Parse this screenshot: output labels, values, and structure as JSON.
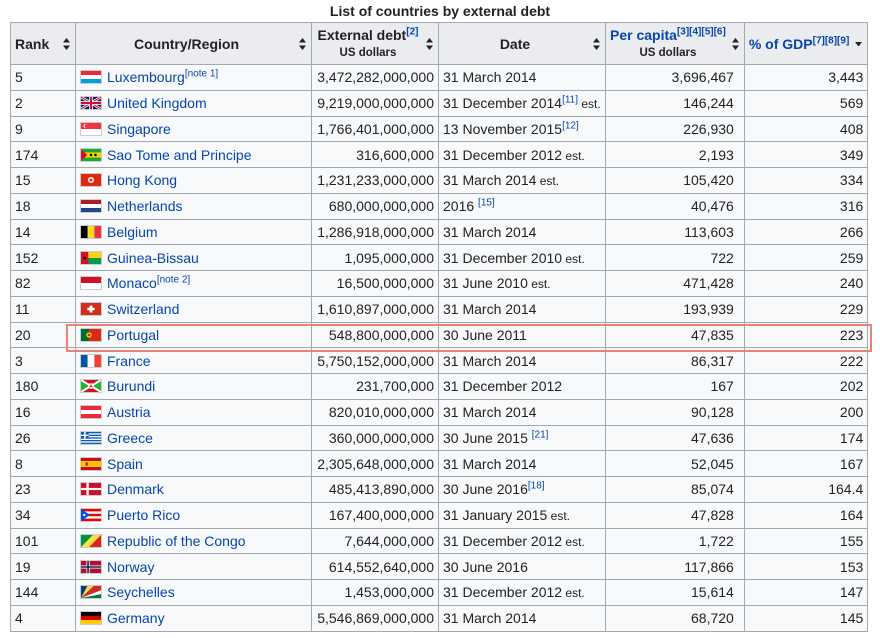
{
  "caption": "List of countries by external debt",
  "headers": {
    "rank": "Rank",
    "country": "Country/Region",
    "debt": "External debt",
    "debt_refs": "[2]",
    "debt_unit": "US dollars",
    "date": "Date",
    "per_capita": "Per capita",
    "per_capita_refs": "[3][4][5][6]",
    "per_capita_unit": "US dollars",
    "gdp": "% of GDP",
    "gdp_refs": "[7][8][9]"
  },
  "rows": [
    {
      "rank": "5",
      "country": "Luxembourg",
      "note": "[note 1]",
      "flag": "lu",
      "debt": "3,472,282,000,000",
      "date": "31 March 2014",
      "date_ref": "",
      "est": "",
      "per_capita": "3,696,467",
      "gdp": "3,443"
    },
    {
      "rank": "2",
      "country": "United Kingdom",
      "note": "",
      "flag": "gb",
      "debt": "9,219,000,000,000",
      "date": "31 December 2014",
      "date_ref": "[11]",
      "est": " est.",
      "per_capita": "146,244",
      "gdp": "569"
    },
    {
      "rank": "9",
      "country": "Singapore",
      "note": "",
      "flag": "sg",
      "debt": "1,766,401,000,000",
      "date": "13 November 2015",
      "date_ref": "[12]",
      "est": "",
      "per_capita": "226,930",
      "gdp": "408"
    },
    {
      "rank": "174",
      "country": "Sao Tome and Principe",
      "note": "",
      "flag": "st",
      "debt": "316,600,000",
      "date": "31 December 2012",
      "date_ref": "",
      "est": " est.",
      "per_capita": "2,193",
      "gdp": "349"
    },
    {
      "rank": "15",
      "country": "Hong Kong",
      "note": "",
      "flag": "hk",
      "debt": "1,231,233,000,000",
      "date": "31 March 2014",
      "date_ref": "",
      "est": " est.",
      "per_capita": "105,420",
      "gdp": "334"
    },
    {
      "rank": "18",
      "country": "Netherlands",
      "note": "",
      "flag": "nl",
      "debt": "680,000,000,000",
      "date": "2016 ",
      "date_ref": "[15]",
      "est": "",
      "per_capita": "40,476",
      "gdp": "316"
    },
    {
      "rank": "14",
      "country": "Belgium",
      "note": "",
      "flag": "be",
      "debt": "1,286,918,000,000",
      "date": "31 March 2014",
      "date_ref": "",
      "est": "",
      "per_capita": "113,603",
      "gdp": "266"
    },
    {
      "rank": "152",
      "country": "Guinea-Bissau",
      "note": "",
      "flag": "gw",
      "debt": "1,095,000,000",
      "date": "31 December 2010",
      "date_ref": "",
      "est": " est.",
      "per_capita": "722",
      "gdp": "259"
    },
    {
      "rank": "82",
      "country": "Monaco",
      "note": "[note 2]",
      "flag": "mc",
      "debt": "16,500,000,000",
      "date": "31 June 2010",
      "date_ref": "",
      "est": " est.",
      "per_capita": "471,428",
      "gdp": "240"
    },
    {
      "rank": "11",
      "country": "Switzerland",
      "note": "",
      "flag": "ch",
      "debt": "1,610,897,000,000",
      "date": "31 March 2014",
      "date_ref": "",
      "est": "",
      "per_capita": "193,939",
      "gdp": "229"
    },
    {
      "rank": "20",
      "country": "Portugal",
      "note": "",
      "flag": "pt",
      "debt": "548,800,000,000",
      "date": "30 June 2011",
      "date_ref": "",
      "est": "",
      "per_capita": "47,835",
      "gdp": "223"
    },
    {
      "rank": "3",
      "country": "France",
      "note": "",
      "flag": "fr",
      "debt": "5,750,152,000,000",
      "date": "31 March 2014",
      "date_ref": "",
      "est": "",
      "per_capita": "86,317",
      "gdp": "222"
    },
    {
      "rank": "180",
      "country": "Burundi",
      "note": "",
      "flag": "bi",
      "debt": "231,700,000",
      "date": "31 December 2012",
      "date_ref": "",
      "est": "",
      "per_capita": "167",
      "gdp": "202"
    },
    {
      "rank": "16",
      "country": "Austria",
      "note": "",
      "flag": "at",
      "debt": "820,010,000,000",
      "date": "31 March 2014",
      "date_ref": "",
      "est": "",
      "per_capita": "90,128",
      "gdp": "200"
    },
    {
      "rank": "26",
      "country": "Greece",
      "note": "",
      "flag": "gr",
      "debt": "360,000,000,000",
      "date": "30 June 2015 ",
      "date_ref": "[21]",
      "est": "",
      "per_capita": "47,636",
      "gdp": "174"
    },
    {
      "rank": "8",
      "country": "Spain",
      "note": "",
      "flag": "es",
      "debt": "2,305,648,000,000",
      "date": "31 March 2014",
      "date_ref": "",
      "est": "",
      "per_capita": "52,045",
      "gdp": "167"
    },
    {
      "rank": "23",
      "country": "Denmark",
      "note": "",
      "flag": "dk",
      "debt": "485,413,890,000",
      "date": "30 June 2016",
      "date_ref": "[18]",
      "est": "",
      "per_capita": "85,074",
      "gdp": "164.4"
    },
    {
      "rank": "34",
      "country": "Puerto Rico",
      "note": "",
      "flag": "pr",
      "debt": "167,400,000,000",
      "date": "31 January 2015",
      "date_ref": "",
      "est": " est.",
      "per_capita": "47,828",
      "gdp": "164"
    },
    {
      "rank": "101",
      "country": "Republic of the Congo",
      "note": "",
      "flag": "cg",
      "debt": "7,644,000,000",
      "date": "31 December 2012",
      "date_ref": "",
      "est": " est.",
      "per_capita": "1,722",
      "gdp": "155"
    },
    {
      "rank": "19",
      "country": "Norway",
      "note": "",
      "flag": "no",
      "debt": "614,552,640,000",
      "date": "30 June 2016",
      "date_ref": "",
      "est": "",
      "per_capita": "117,866",
      "gdp": "153"
    },
    {
      "rank": "144",
      "country": "Seychelles",
      "note": "",
      "flag": "sc",
      "debt": "1,453,000,000",
      "date": "31 December 2012",
      "date_ref": "",
      "est": " est.",
      "per_capita": "15,614",
      "gdp": "147"
    },
    {
      "rank": "4",
      "country": "Germany",
      "note": "",
      "flag": "de",
      "debt": "5,546,869,000,000",
      "date": "31 March 2014",
      "date_ref": "",
      "est": "",
      "per_capita": "68,720",
      "gdp": "145"
    }
  ],
  "highlighted_country": "Portugal",
  "colors": {
    "link": "#0645ad",
    "header_bg": "#eaecf0",
    "cell_bg": "#f8f9fa",
    "border": "#a2a9b1",
    "highlight": "#e8837a"
  }
}
